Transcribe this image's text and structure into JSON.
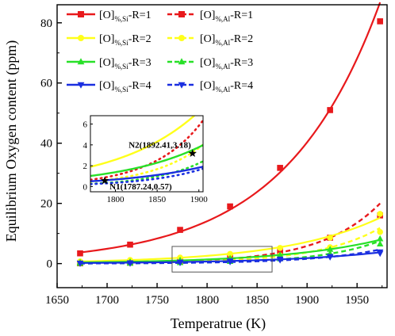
{
  "chart_data": {
    "type": "line",
    "xlabel": "Temperatrue (K)",
    "ylabel": "Equilibrium Oxygen content  (ppm)",
    "xlim": [
      1650,
      1980
    ],
    "ylim": [
      -8,
      86
    ],
    "xticks": [
      1650,
      1700,
      1750,
      1800,
      1850,
      1900,
      1950
    ],
    "yticks": [
      0,
      20,
      40,
      60,
      80
    ],
    "legend_position": "top-left",
    "colors": {
      "R1": "#e8191c",
      "R2": "#ffff1a",
      "R3": "#28e028",
      "R4": "#1a2fe0"
    },
    "series": [
      {
        "name": "[O]%,Si-R=1",
        "style": "solid",
        "marker": "square",
        "color": "#e8191c",
        "x": [
          1673,
          1723,
          1773,
          1823,
          1873,
          1923,
          1973
        ],
        "y": [
          3.4,
          6.3,
          11.2,
          19.0,
          31.8,
          51.0,
          80.5
        ]
      },
      {
        "name": "[O]%,Al-R=1",
        "style": "dashed",
        "marker": "square",
        "color": "#e8191c",
        "x": [
          1673,
          1723,
          1773,
          1823,
          1873,
          1923,
          1973
        ],
        "y": [
          0.1,
          0.3,
          0.8,
          1.9,
          4.2,
          8.6,
          16.0
        ]
      },
      {
        "name": "[O]%,Si-R=2",
        "style": "solid",
        "marker": "circle",
        "color": "#ffff1a",
        "x": [
          1673,
          1723,
          1773,
          1823,
          1873,
          1923,
          1973
        ],
        "y": [
          0.7,
          1.2,
          2.0,
          3.2,
          5.2,
          8.6,
          16.5
        ]
      },
      {
        "name": "[O]%,Al-R=2",
        "style": "dashed",
        "marker": "circle",
        "color": "#ffff1a",
        "x": [
          1673,
          1723,
          1773,
          1823,
          1873,
          1923,
          1973
        ],
        "y": [
          0.1,
          0.2,
          0.5,
          1.2,
          2.7,
          5.4,
          10.5
        ]
      },
      {
        "name": "[O]%,Si-R=3",
        "style": "solid",
        "marker": "triangle-up",
        "color": "#28e028",
        "x": [
          1673,
          1723,
          1773,
          1823,
          1873,
          1923,
          1973
        ],
        "y": [
          0.4,
          0.6,
          1.1,
          1.7,
          2.8,
          4.7,
          8.2
        ]
      },
      {
        "name": "[O]%,Al-R=3",
        "style": "dashed",
        "marker": "triangle-up",
        "color": "#28e028",
        "x": [
          1673,
          1723,
          1773,
          1823,
          1873,
          1923,
          1973
        ],
        "y": [
          0.05,
          0.1,
          0.3,
          0.7,
          1.6,
          3.3,
          6.5
        ]
      },
      {
        "name": "[O]%,Si-R=4",
        "style": "solid",
        "marker": "triangle-down",
        "color": "#1a2fe0",
        "x": [
          1673,
          1723,
          1773,
          1823,
          1873,
          1923,
          1973
        ],
        "y": [
          0.2,
          0.3,
          0.5,
          0.9,
          1.5,
          2.4,
          3.4
        ]
      },
      {
        "name": "[O]%,Al-R=4",
        "style": "dashed",
        "marker": "triangle-down",
        "color": "#1a2fe0",
        "x": [
          1673,
          1723,
          1773,
          1823,
          1873,
          1923,
          1973
        ],
        "y": [
          0.05,
          0.1,
          0.3,
          0.6,
          1.2,
          2.2,
          3.9
        ]
      }
    ],
    "inset": {
      "xlim": [
        1770,
        1905
      ],
      "ylim": [
        -0.5,
        6.8
      ],
      "xticks": [
        1800,
        1850,
        1900
      ],
      "yticks": [
        0,
        2,
        4,
        6
      ],
      "points": [
        {
          "label": "N1(1787.24,0.57)",
          "x": 1787.24,
          "y": 0.57
        },
        {
          "label": "N2(1892.41,3.18)",
          "x": 1892.41,
          "y": 3.18
        }
      ]
    }
  },
  "legend": {
    "entries": [
      {
        "id": "R1-Si",
        "main": "[O]",
        "sub": "%,Si",
        "tail": "-R=1"
      },
      {
        "id": "R1-Al",
        "main": "[O]",
        "sub": "%,Al",
        "tail": "-R=1"
      },
      {
        "id": "R2-Si",
        "main": "[O]",
        "sub": "%,Si",
        "tail": "-R=2"
      },
      {
        "id": "R2-Al",
        "main": "[O]",
        "sub": "%,Al",
        "tail": "-R=2"
      },
      {
        "id": "R3-Si",
        "main": "[O]",
        "sub": "%,Si",
        "tail": "-R=3"
      },
      {
        "id": "R3-Al",
        "main": "[O]",
        "sub": "%,Al",
        "tail": "-R=3"
      },
      {
        "id": "R4-Si",
        "main": "[O]",
        "sub": "%,Si",
        "tail": "-R=4"
      },
      {
        "id": "R4-Al",
        "main": "[O]",
        "sub": "%,Al",
        "tail": "-R=4"
      }
    ]
  }
}
